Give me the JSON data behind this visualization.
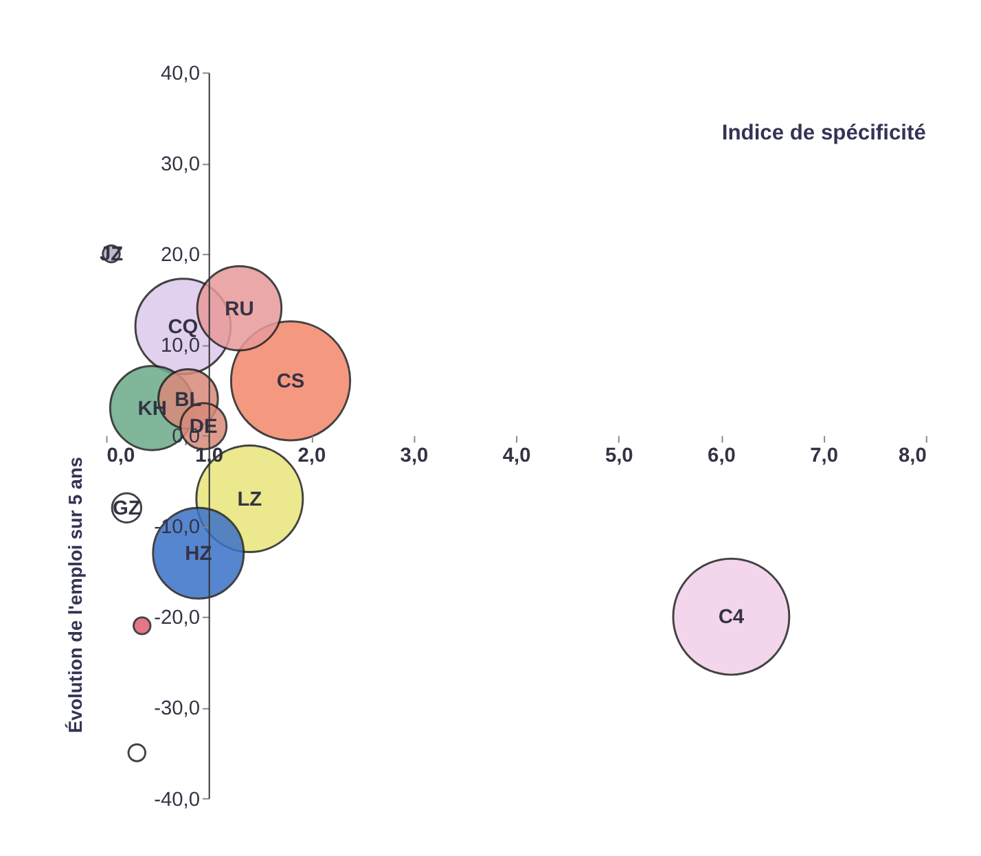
{
  "chart_data": {
    "type": "bubble",
    "ylabel": "Évolution de l'emploi sur 5 ans",
    "x": [
      6.1,
      1.8,
      1.4,
      0.75,
      1.3,
      0.45,
      0.9,
      0.8,
      0.95,
      0.2,
      0.35,
      0.05,
      0.3
    ],
    "values": [
      -20,
      6,
      -7,
      12,
      14,
      3,
      -13,
      4,
      1,
      -8,
      -21,
      20,
      -35
    ],
    "sizes": [
      0.95,
      1,
      0.8,
      0.64,
      0.5,
      0.5,
      0.58,
      0.25,
      0.15,
      0.06,
      0.02,
      0.02,
      0.02
    ],
    "colors": [
      "#f2d0e8",
      "#f4876a",
      "#e8e47a",
      "#dcc8ec",
      "#e79a9a",
      "#6aaa88",
      "#3a72c8",
      "#d98a7a",
      "#d98a7a",
      "#ffffff",
      "#e06070",
      "#b0b0c0",
      "#ffffff"
    ],
    "annotations": [
      "Indice de spécificité",
      {
        "text": "C4",
        "x": 6.1,
        "y": -20
      },
      {
        "text": "CS",
        "x": 1.8,
        "y": 6
      },
      {
        "text": "LZ",
        "x": 1.4,
        "y": -7
      },
      {
        "text": "CQ",
        "x": 0.75,
        "y": 12
      },
      {
        "text": "RU",
        "x": 1.3,
        "y": 14
      },
      {
        "text": "KH",
        "x": 0.45,
        "y": 3
      },
      {
        "text": "HZ",
        "x": 0.9,
        "y": -13
      },
      {
        "text": "BL",
        "x": 0.8,
        "y": 4
      },
      {
        "text": "DE",
        "x": 0.95,
        "y": 1
      },
      {
        "text": "GZ",
        "x": 0.2,
        "y": -8
      },
      {
        "text": "JZ",
        "x": 0.05,
        "y": 20
      }
    ],
    "xlim": [
      0,
      8
    ],
    "ylim": [
      -40,
      40
    ],
    "xticks": [
      {
        "value": 0,
        "label": "0,0"
      },
      {
        "value": 1,
        "label": "1,0"
      },
      {
        "value": 2,
        "label": "2,0"
      },
      {
        "value": 3,
        "label": "3,0"
      },
      {
        "value": 4,
        "label": "4,0"
      },
      {
        "value": 5,
        "label": "5,0"
      },
      {
        "value": 6,
        "label": "6,0"
      },
      {
        "value": 7,
        "label": "7,0"
      },
      {
        "value": 8,
        "label": "8,0"
      }
    ],
    "yticks": [
      {
        "value": -40,
        "label": "-40,0"
      },
      {
        "value": -30,
        "label": "-30,0"
      },
      {
        "value": -20,
        "label": "-20,0"
      },
      {
        "value": -10,
        "label": "-10,0"
      },
      {
        "value": 0,
        "label": "0,0"
      },
      {
        "value": 10,
        "label": "10,0"
      },
      {
        "value": 20,
        "label": "20,0"
      },
      {
        "value": 30,
        "label": "30,0"
      },
      {
        "value": 40,
        "label": "40,0"
      }
    ],
    "grid": false
  }
}
